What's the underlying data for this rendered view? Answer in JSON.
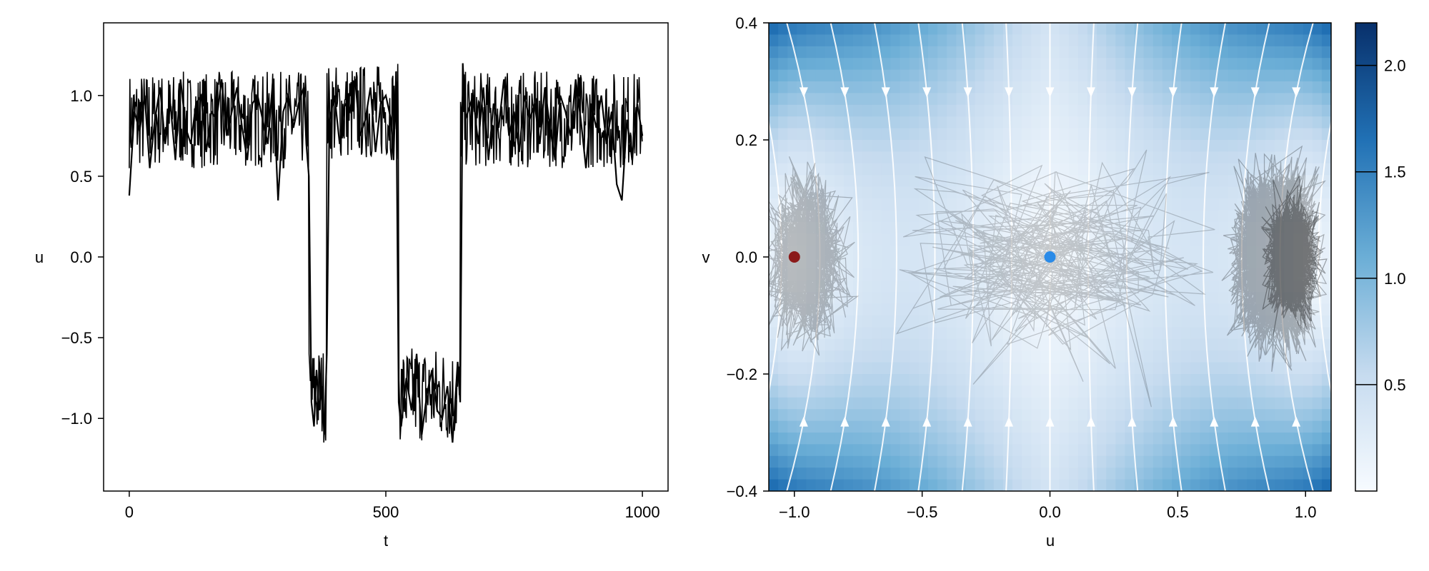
{
  "chart_data": [
    {
      "type": "line",
      "title": "",
      "xlabel": "t",
      "ylabel": "u",
      "xlim": [
        -50,
        1050
      ],
      "ylim": [
        -1.45,
        1.45
      ],
      "xticks": [
        0,
        500,
        1000
      ],
      "xtick_labels": [
        "0",
        "500",
        "1000"
      ],
      "yticks": [
        1.0,
        0.5,
        0.0,
        -0.5,
        -1.0
      ],
      "ytick_labels": [
        "1.0",
        "0.5",
        "0.0",
        "−0.5",
        "−1.0"
      ],
      "grid": false,
      "line_color": "#000000",
      "description_of_regimes": null,
      "x": [
        0,
        10,
        20,
        30,
        40,
        50,
        60,
        70,
        80,
        90,
        100,
        110,
        120,
        130,
        140,
        150,
        160,
        170,
        180,
        190,
        200,
        210,
        220,
        230,
        240,
        250,
        260,
        270,
        280,
        290,
        300,
        310,
        320,
        330,
        340,
        345,
        350,
        355,
        360,
        365,
        370,
        375,
        380,
        385,
        390,
        400,
        410,
        420,
        430,
        440,
        450,
        460,
        470,
        480,
        490,
        500,
        510,
        515,
        520,
        525,
        530,
        540,
        550,
        560,
        570,
        580,
        590,
        600,
        610,
        620,
        630,
        640,
        645,
        650,
        655,
        660,
        670,
        680,
        690,
        700,
        710,
        720,
        730,
        740,
        750,
        760,
        770,
        780,
        790,
        800,
        810,
        820,
        830,
        840,
        850,
        860,
        870,
        880,
        890,
        900,
        910,
        920,
        930,
        940,
        950,
        960,
        970,
        980,
        990,
        1000
      ],
      "y": [
        0.38,
        0.9,
        0.78,
        1.0,
        0.55,
        0.85,
        1.05,
        0.7,
        0.95,
        0.6,
        1.1,
        0.8,
        0.7,
        0.95,
        1.0,
        0.65,
        0.9,
        0.85,
        1.1,
        0.75,
        0.9,
        1.05,
        0.8,
        0.6,
        0.95,
        1.0,
        0.85,
        0.7,
        1.1,
        0.35,
        0.9,
        1.0,
        0.8,
        0.95,
        1.05,
        0.7,
        0.5,
        -0.9,
        -1.05,
        -0.7,
        -0.95,
        -0.8,
        -1.1,
        -0.6,
        0.85,
        1.0,
        0.7,
        0.95,
        0.9,
        1.1,
        0.75,
        0.85,
        1.05,
        0.65,
        0.95,
        1.0,
        0.85,
        0.6,
        1.15,
        -0.9,
        -1.05,
        -0.75,
        -0.95,
        -0.6,
        -1.1,
        -0.85,
        -0.7,
        -0.95,
        -1.0,
        -0.8,
        -1.15,
        -0.65,
        -0.9,
        1.2,
        0.85,
        0.9,
        1.0,
        0.7,
        1.05,
        0.6,
        0.95,
        0.8,
        1.1,
        0.75,
        0.9,
        0.65,
        1.0,
        0.85,
        0.95,
        0.7,
        1.05,
        0.8,
        0.6,
        1.0,
        0.9,
        0.75,
        1.1,
        0.85,
        0.55,
        0.95,
        0.8,
        1.0,
        0.7,
        0.9,
        0.45,
        0.35,
        0.85,
        0.6,
        0.95,
        0.75
      ]
    },
    {
      "type": "heatmap",
      "title": "",
      "xlabel": "u",
      "ylabel": "v",
      "xlim": [
        -1.1,
        1.1
      ],
      "ylim": [
        -0.4,
        0.4
      ],
      "xticks": [
        -1.0,
        -0.5,
        0.0,
        0.5,
        1.0
      ],
      "xtick_labels": [
        "−1.0",
        "−0.5",
        "0.0",
        "0.5",
        "1.0"
      ],
      "yticks": [
        0.4,
        0.2,
        0.0,
        -0.2,
        -0.4
      ],
      "ytick_labels": [
        "0.4",
        "0.2",
        "0.0",
        "−0.2",
        "−0.4"
      ],
      "grid": false,
      "colormap": "Blues",
      "colorbar": {
        "ticks": [
          0.5,
          1.0,
          1.5,
          2.0
        ],
        "tick_labels": [
          "0.5",
          "1.0",
          "1.5",
          "2.0"
        ],
        "range": [
          0.0,
          2.2
        ],
        "placement": "right"
      },
      "overlays": {
        "streamlines_color": "#ffffff",
        "trajectory_color": "#000000",
        "points": [
          {
            "u": -1.0,
            "v": 0.0,
            "color": "#8b1a1a"
          },
          {
            "u": 0.0,
            "v": 0.0,
            "color": "#2a8be8"
          }
        ]
      }
    }
  ]
}
